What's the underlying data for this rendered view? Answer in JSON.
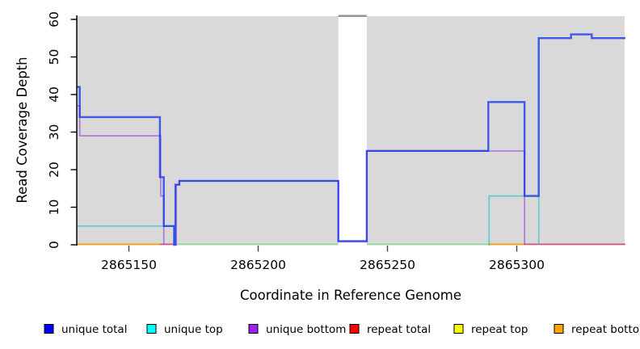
{
  "axes": {
    "xlabel": "Coordinate in Reference Genome",
    "ylabel": "Read Coverage Depth",
    "x_ticks": [
      {
        "value": 2865150,
        "label": "2865150"
      },
      {
        "value": 2865200,
        "label": "2865200"
      },
      {
        "value": 2865250,
        "label": "2865250"
      },
      {
        "value": 2865300,
        "label": "2865300"
      }
    ],
    "y_ticks": [
      {
        "value": 0,
        "label": "0"
      },
      {
        "value": 10,
        "label": "10"
      },
      {
        "value": 20,
        "label": "20"
      },
      {
        "value": 30,
        "label": "30"
      },
      {
        "value": 40,
        "label": "40"
      },
      {
        "value": 50,
        "label": "50"
      },
      {
        "value": 60,
        "label": "60"
      }
    ]
  },
  "legend": {
    "items": [
      {
        "label": "unique total",
        "color": "#0000ff"
      },
      {
        "label": "unique top",
        "color": "#00ffff"
      },
      {
        "label": "unique bottom",
        "color": "#a020f0"
      },
      {
        "label": "repeat total",
        "color": "#ff0000"
      },
      {
        "label": "repeat top",
        "color": "#ffff00"
      },
      {
        "label": "repeat bottom",
        "color": "#ffa500"
      }
    ]
  },
  "chart_data": {
    "type": "line",
    "subtype": "step-coverage",
    "title": "",
    "xlabel": "Coordinate in Reference Genome",
    "ylabel": "Read Coverage Depth",
    "x_range": [
      2865130,
      2865342
    ],
    "ylim": [
      0,
      61
    ],
    "grid": false,
    "plot_bg": "#d9d9d9",
    "gap_region": {
      "from": 2865231,
      "to": 2865242,
      "cap_color": "#8f8f8f"
    },
    "series": [
      {
        "name": "unique top",
        "stroke": "rgba(0,190,190,0.55)",
        "width": 1.7,
        "segments": [
          [
            [
              2865130,
              5
            ],
            [
              2865167.5,
              0
            ]
          ],
          [
            [
              2865289,
              0
            ],
            [
              2865289.3,
              13
            ],
            [
              2865308.5,
              0
            ]
          ]
        ]
      },
      {
        "name": "unique bottom",
        "stroke": "rgba(150,40,220,0.55)",
        "width": 1.7,
        "segments": [
          [
            [
              2865130,
              37
            ],
            [
              2865131,
              29
            ],
            [
              2865162.3,
              13
            ],
            [
              2865163.5,
              0
            ]
          ],
          [
            [
              2865168,
              0
            ],
            [
              2865168.3,
              16
            ],
            [
              2865169.5,
              17
            ],
            [
              2865231,
              0.8
            ],
            [
              2865242,
              25
            ],
            [
              2865303,
              0
            ]
          ]
        ]
      },
      {
        "name": "unique total",
        "stroke": "rgba(25,55,235,0.8)",
        "width": 2.4,
        "segments": [
          [
            [
              2865130,
              42
            ],
            [
              2865131,
              34
            ],
            [
              2865162,
              18
            ],
            [
              2865163.5,
              5
            ],
            [
              2865167.5,
              0
            ],
            [
              2865168,
              16
            ],
            [
              2865169.5,
              17
            ],
            [
              2865231,
              1
            ],
            [
              2865242,
              25
            ],
            [
              2865289,
              38
            ],
            [
              2865303,
              13
            ],
            [
              2865308.5,
              55
            ],
            [
              2865321,
              56
            ],
            [
              2865329,
              55
            ],
            [
              2865342,
              55
            ]
          ]
        ]
      }
    ],
    "baseline_segments": [
      {
        "from": 2865130,
        "to": 2865162,
        "color": "#ff9c00",
        "series": "repeat bottom at 0"
      },
      {
        "from": 2865162,
        "to": 2865167.5,
        "color": "#d65477",
        "series": "repeat total at 0"
      },
      {
        "from": 2865167.5,
        "to": 2865231,
        "color": "#93d6a1",
        "series": "unique/repeat top at 0"
      },
      {
        "from": 2865242,
        "to": 2865289,
        "color": "#93d6a1",
        "series": "unique/repeat top at 0"
      },
      {
        "from": 2865289,
        "to": 2865303,
        "color": "#ff9c00",
        "series": "repeat bottom at 0"
      },
      {
        "from": 2865303,
        "to": 2865342,
        "color": "#d65477",
        "series": "repeat total at 0"
      }
    ]
  }
}
